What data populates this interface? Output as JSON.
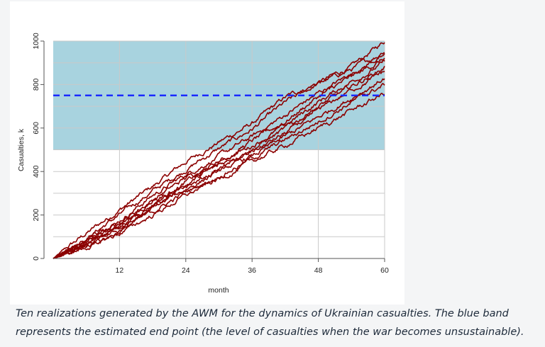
{
  "chart_data": {
    "type": "line",
    "title": "",
    "xlabel": "month",
    "ylabel": "Casualties, k",
    "xlim": [
      0,
      60
    ],
    "ylim": [
      0,
      1000
    ],
    "xticks": [
      12,
      24,
      36,
      48,
      60
    ],
    "yticks": [
      0,
      200,
      400,
      600,
      800,
      1000
    ],
    "x_tick_labels": [
      "12",
      "24",
      "36",
      "48",
      "60"
    ],
    "y_tick_labels": [
      "0",
      "200",
      "400",
      "600",
      "800",
      "1000"
    ],
    "grid": true,
    "band": {
      "y_from": 500,
      "y_to": 1000,
      "color": "#a8d3df"
    },
    "threshold": {
      "y": 750,
      "color": "#1a2bff",
      "style": "dashed"
    },
    "line_color": "#8b0000",
    "series_count": 10,
    "series": [
      {
        "x": [
          0,
          6,
          12,
          18,
          24,
          30,
          36,
          42,
          48,
          54,
          60
        ],
        "y": [
          0,
          115,
          225,
          330,
          445,
          535,
          620,
          740,
          810,
          880,
          1000
        ]
      },
      {
        "x": [
          0,
          6,
          12,
          18,
          24,
          30,
          36,
          42,
          48,
          54,
          60
        ],
        "y": [
          0,
          95,
          200,
          310,
          410,
          505,
          595,
          715,
          805,
          870,
          950
        ]
      },
      {
        "x": [
          0,
          6,
          12,
          18,
          24,
          30,
          36,
          42,
          48,
          54,
          60
        ],
        "y": [
          0,
          80,
          175,
          290,
          385,
          470,
          560,
          660,
          760,
          850,
          940
        ]
      },
      {
        "x": [
          0,
          6,
          12,
          18,
          24,
          30,
          36,
          42,
          48,
          54,
          60
        ],
        "y": [
          0,
          85,
          165,
          270,
          370,
          445,
          540,
          630,
          745,
          835,
          920
        ]
      },
      {
        "x": [
          0,
          6,
          12,
          18,
          24,
          30,
          36,
          42,
          48,
          54,
          60
        ],
        "y": [
          0,
          70,
          150,
          250,
          350,
          445,
          520,
          610,
          720,
          815,
          900
        ]
      },
      {
        "x": [
          0,
          6,
          12,
          18,
          24,
          30,
          36,
          42,
          48,
          54,
          60
        ],
        "y": [
          0,
          78,
          160,
          260,
          340,
          430,
          505,
          595,
          700,
          790,
          880
        ]
      },
      {
        "x": [
          0,
          6,
          12,
          18,
          24,
          30,
          36,
          42,
          48,
          54,
          60
        ],
        "y": [
          0,
          62,
          145,
          240,
          325,
          410,
          490,
          575,
          680,
          775,
          860
        ]
      },
      {
        "x": [
          0,
          6,
          12,
          18,
          24,
          30,
          36,
          42,
          48,
          54,
          60
        ],
        "y": [
          0,
          58,
          130,
          230,
          320,
          400,
          470,
          560,
          650,
          740,
          830
        ]
      },
      {
        "x": [
          0,
          6,
          12,
          18,
          24,
          30,
          36,
          42,
          48,
          54,
          60
        ],
        "y": [
          0,
          55,
          125,
          215,
          305,
          380,
          460,
          545,
          630,
          720,
          800
        ]
      },
      {
        "x": [
          0,
          6,
          12,
          18,
          24,
          30,
          36,
          42,
          48,
          54,
          60
        ],
        "y": [
          0,
          50,
          115,
          200,
          290,
          365,
          445,
          520,
          600,
          680,
          760
        ]
      }
    ]
  },
  "caption": "Ten realizations generated by the AWM for the dynamics of Ukrainian casualties. The blue band represents the estimated end point (the level of casualties when the war becomes unsustainable)."
}
